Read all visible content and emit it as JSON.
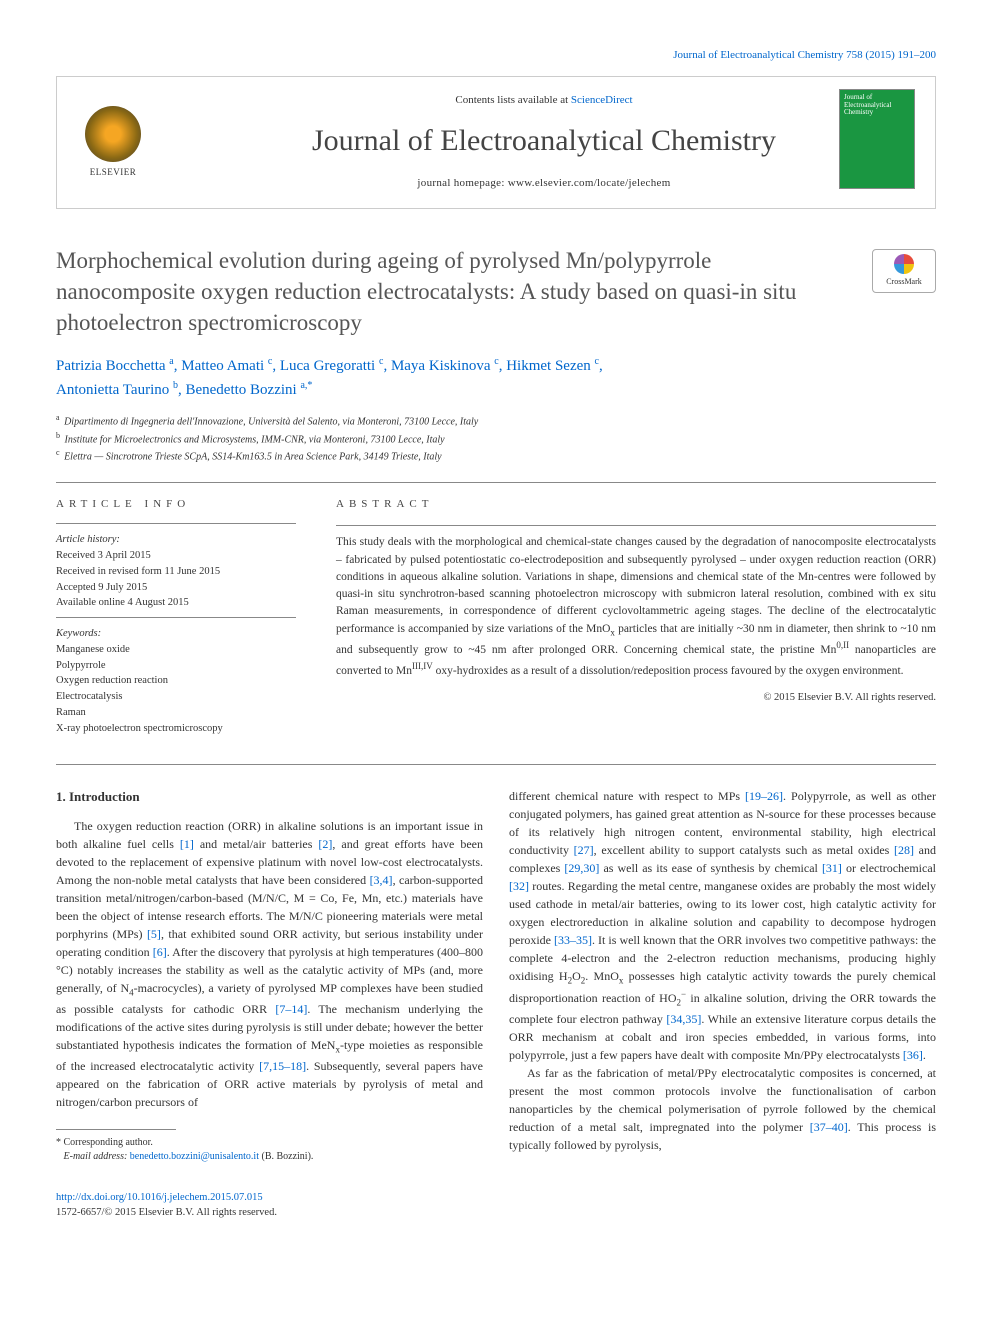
{
  "header": {
    "citation": "Journal of Electroanalytical Chemistry 758 (2015) 191–200",
    "contents_prefix": "Contents lists available at ",
    "contents_link": "ScienceDirect",
    "journal_title": "Journal of Electroanalytical Chemistry",
    "homepage_prefix": "journal homepage: ",
    "homepage_url": "www.elsevier.com/locate/jelechem",
    "elsevier_label": "ELSEVIER",
    "cover_text": "Journal of Electroanalytical Chemistry",
    "crossmark_label": "CrossMark"
  },
  "article": {
    "title": "Morphochemical evolution during ageing of pyrolysed Mn/polypyrrole nanocomposite oxygen reduction electrocatalysts: A study based on quasi-in situ photoelectron spectromicroscopy",
    "authors_html": "Patrizia Bocchetta <sup>a</sup>, Matteo Amati <sup>c</sup>, Luca Gregoratti <sup>c</sup>, Maya Kiskinova <sup>c</sup>, Hikmet Sezen <sup>c</sup>, Antonietta Taurino <sup>b</sup>, Benedetto Bozzini <sup>a,*</sup>",
    "affiliations": {
      "a": "Dipartimento di Ingegneria dell'Innovazione, Università del Salento, via Monteroni, 73100 Lecce, Italy",
      "b": "Institute for Microelectronics and Microsystems, IMM-CNR, via Monteroni, 73100 Lecce, Italy",
      "c": "Elettra — Sincrotrone Trieste SCpA, SS14-Km163.5 in Area Science Park, 34149 Trieste, Italy"
    }
  },
  "info": {
    "heading": "article info",
    "history_label": "Article history:",
    "received": "Received 3 April 2015",
    "revised": "Received in revised form 11 June 2015",
    "accepted": "Accepted 9 July 2015",
    "online": "Available online 4 August 2015",
    "keywords_label": "Keywords:",
    "keywords": [
      "Manganese oxide",
      "Polypyrrole",
      "Oxygen reduction reaction",
      "Electrocatalysis",
      "Raman",
      "X-ray photoelectron spectromicroscopy"
    ]
  },
  "abstract": {
    "heading": "abstract",
    "text": "This study deals with the morphological and chemical-state changes caused by the degradation of nanocomposite electrocatalysts – fabricated by pulsed potentiostatic co-electrodeposition and subsequently pyrolysed – under oxygen reduction reaction (ORR) conditions in aqueous alkaline solution. Variations in shape, dimensions and chemical state of the Mn-centres were followed by quasi-in situ synchrotron-based scanning photoelectron microscopy with submicron lateral resolution, combined with ex situ Raman measurements, in correspondence of different cyclovoltammetric ageing stages. The decline of the electrocatalytic performance is accompanied by size variations of the MnOx particles that are initially ~30 nm in diameter, then shrink to ~10 nm and subsequently grow to ~45 nm after prolonged ORR. Concerning chemical state, the pristine Mn0,II nanoparticles are converted to MnIII,IV oxy-hydroxides as a result of a dissolution/redeposition process favoured by the oxygen environment.",
    "copyright": "© 2015 Elsevier B.V. All rights reserved."
  },
  "body": {
    "section_number": "1.",
    "section_title": "Introduction",
    "col1": "The oxygen reduction reaction (ORR) in alkaline solutions is an important issue in both alkaline fuel cells [1] and metal/air batteries [2], and great efforts have been devoted to the replacement of expensive platinum with novel low-cost electrocatalysts. Among the non-noble metal catalysts that have been considered [3,4], carbon-supported transition metal/nitrogen/carbon-based (M/N/C, M = Co, Fe, Mn, etc.) materials have been the object of intense research efforts. The M/N/C pioneering materials were metal porphyrins (MPs) [5], that exhibited sound ORR activity, but serious instability under operating condition [6]. After the discovery that pyrolysis at high temperatures (400–800 °C) notably increases the stability as well as the catalytic activity of MPs (and, more generally, of N4-macrocycles), a variety of pyrolysed MP complexes have been studied as possible catalysts for cathodic ORR [7–14]. The mechanism underlying the modifications of the active sites during pyrolysis is still under debate; however the better substantiated hypothesis indicates the formation of MeNx-type moieties as responsible of the increased electrocatalytic activity [7,15–18]. Subsequently, several papers have appeared on the fabrication of ORR active materials by pyrolysis of metal and nitrogen/carbon precursors of",
    "col2a": "different chemical nature with respect to MPs [19–26]. Polypyrrole, as well as other conjugated polymers, has gained great attention as N-source for these processes because of its relatively high nitrogen content, environmental stability, high electrical conductivity [27], excellent ability to support catalysts such as metal oxides [28] and complexes [29,30] as well as its ease of synthesis by chemical [31] or electrochemical [32] routes. Regarding the metal centre, manganese oxides are probably the most widely used cathode in metal/air batteries, owing to its lower cost, high catalytic activity for oxygen electroreduction in alkaline solution and capability to decompose hydrogen peroxide [33–35]. It is well known that the ORR involves two competitive pathways: the complete 4-electron and the 2-electron reduction mechanisms, producing highly oxidising H2O2. MnOx possesses high catalytic activity towards the purely chemical disproportionation reaction of HO2− in alkaline solution, driving the ORR towards the complete four electron pathway [34,35]. While an extensive literature corpus details the ORR mechanism at cobalt and iron species embedded, in various forms, into polypyrrole, just a few papers have dealt with composite Mn/PPy electrocatalysts [36].",
    "col2b": "As far as the fabrication of metal/PPy electrocatalytic composites is concerned, at present the most common protocols involve the functionalisation of carbon nanoparticles by the chemical polymerisation of pyrrole followed by the chemical reduction of a metal salt, impregnated into the polymer [37–40]. This process is typically followed by pyrolysis,"
  },
  "footnote": {
    "marker": "*",
    "label": "Corresponding author.",
    "email_label": "E-mail address:",
    "email": "benedetto.bozzini@unisalento.it",
    "email_person": "(B. Bozzini)."
  },
  "footer": {
    "doi": "http://dx.doi.org/10.1016/j.jelechem.2015.07.015",
    "issn_line": "1572-6657/© 2015 Elsevier B.V. All rights reserved."
  },
  "colors": {
    "link": "#0066cc",
    "journal_cover": "#1a9641",
    "text": "#333333",
    "heading": "#555555"
  }
}
